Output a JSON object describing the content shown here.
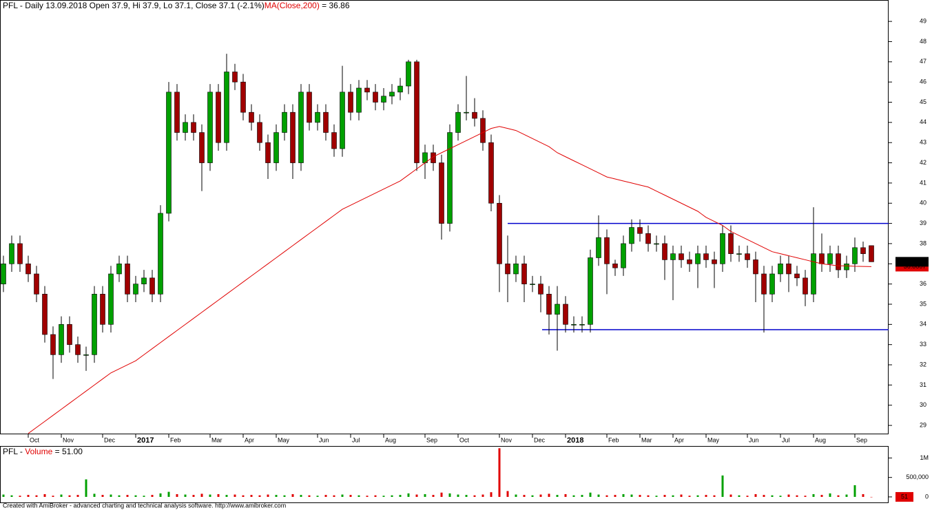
{
  "chart_data": [
    {
      "type": "candlestick",
      "title": "PFL - Daily 13.09.2018 Open 37.9, Hi 37.9, Lo 37.1, Close 37.1 (-2.1%)",
      "title_suffix": " = 36.86",
      "categories": [
        null,
        null,
        null,
        "Oct",
        null,
        null,
        null,
        "Nov",
        null,
        null,
        null,
        null,
        "Dec",
        null,
        null,
        null,
        "2017",
        null,
        null,
        null,
        "Feb",
        null,
        null,
        null,
        null,
        "Mar",
        null,
        null,
        null,
        "Apr",
        null,
        null,
        null,
        "May",
        null,
        null,
        null,
        null,
        "Jun",
        null,
        null,
        null,
        "Jul",
        null,
        null,
        null,
        "Aug",
        null,
        null,
        null,
        null,
        "Sep",
        null,
        null,
        null,
        "Oct",
        null,
        null,
        null,
        null,
        "Nov",
        null,
        null,
        null,
        "Dec",
        null,
        null,
        null,
        "2018",
        null,
        null,
        null,
        null,
        "Feb",
        null,
        null,
        null,
        "Mar",
        null,
        null,
        null,
        "Apr",
        null,
        null,
        null,
        "May",
        null,
        null,
        null,
        null,
        "Jun",
        null,
        null,
        null,
        "Jul",
        null,
        null,
        null,
        "Aug",
        null,
        null,
        null,
        null,
        "Sep",
        null,
        null
      ],
      "open": [
        36,
        37,
        38,
        37,
        36.5,
        35.5,
        33.5,
        32.5,
        34,
        33,
        32.5,
        32.5,
        35.5,
        34,
        36.5,
        37,
        35.5,
        36,
        36.3,
        35.5,
        39.5,
        45.5,
        43.5,
        44,
        43.5,
        42,
        45.5,
        43,
        46.5,
        46,
        44.5,
        44,
        43,
        42,
        43.5,
        44.5,
        42,
        45.5,
        44,
        44.5,
        43.5,
        42.7,
        45.5,
        44.5,
        45.7,
        45.5,
        45,
        45.3,
        45.5,
        45.8,
        47,
        42,
        42.5,
        42,
        39,
        43.5,
        44.5,
        44.5,
        44.2,
        43,
        40,
        37,
        36.5,
        37,
        36,
        36,
        35.5,
        34.5,
        35,
        34,
        34,
        34,
        37.3,
        38.3,
        37,
        36.8,
        38,
        38.8,
        38.5,
        38,
        38,
        37.2,
        37.5,
        37.2,
        37,
        37.5,
        37.2,
        37,
        38.5,
        37.5,
        37.5,
        37.2,
        36.5,
        35.5,
        36.5,
        37,
        36.5,
        36.3,
        35.5,
        37.5,
        37,
        37.5,
        36.7,
        37,
        37.8,
        37.9
      ],
      "high": [
        37.4,
        38.4,
        38.4,
        37.4,
        36.9,
        35.9,
        33.9,
        34.4,
        34.4,
        33.4,
        32.9,
        35.9,
        35.9,
        36.9,
        37.4,
        37.4,
        36.4,
        36.7,
        36.7,
        39.9,
        46,
        45.9,
        44.4,
        44.4,
        43.9,
        45.9,
        45.9,
        47.4,
        46.9,
        46.4,
        44.9,
        44.4,
        43.4,
        43.9,
        44.9,
        44.9,
        45.9,
        45.9,
        44.9,
        44.9,
        43.9,
        46.8,
        45.9,
        46.1,
        46.1,
        45.9,
        45.7,
        45.9,
        46.2,
        47.1,
        47.1,
        42.9,
        42.9,
        42.4,
        43.9,
        44.9,
        46.3,
        45.2,
        44.6,
        43.4,
        40.4,
        38.4,
        37.4,
        37.4,
        36.4,
        36.4,
        35.9,
        35.9,
        35.4,
        34.4,
        34.4,
        37.7,
        39.4,
        38.7,
        37.2,
        38.4,
        39.2,
        39.2,
        38.9,
        38.4,
        38.4,
        37.9,
        37.9,
        37.6,
        37.9,
        37.9,
        37.6,
        38.9,
        38.9,
        37.9,
        37.9,
        37.6,
        36.9,
        36.9,
        37.4,
        37.4,
        36.9,
        36.7,
        39.8,
        38.5,
        37.9,
        37.9,
        37.4,
        38.3,
        38.1,
        37.9
      ],
      "low": [
        35.6,
        36.6,
        36.6,
        36.1,
        35.1,
        33.1,
        31.3,
        32.1,
        32.6,
        32.1,
        31.7,
        32.1,
        33.6,
        33.6,
        36.1,
        35.1,
        35.1,
        35.6,
        35.1,
        35.1,
        39.1,
        43.1,
        43.1,
        43.1,
        40.6,
        41.6,
        42.6,
        42.6,
        45.6,
        44.1,
        43.6,
        42.6,
        41.2,
        41.6,
        43.1,
        41.2,
        41.6,
        43.6,
        43.6,
        43.1,
        42.3,
        42.3,
        44.1,
        44.1,
        45.1,
        44.6,
        44.6,
        44.9,
        45.1,
        45.4,
        41.6,
        41.2,
        41.6,
        38.2,
        38.6,
        43.1,
        44.1,
        43.8,
        42.6,
        39.6,
        35.6,
        35.1,
        36.1,
        35.1,
        35.6,
        34.6,
        33.5,
        32.7,
        33.6,
        33.6,
        33.6,
        33.6,
        36.9,
        35.5,
        36.4,
        36.4,
        37.6,
        38.1,
        37.6,
        37.6,
        36.2,
        35.2,
        36.8,
        36.6,
        35.8,
        36.8,
        35.8,
        36.6,
        37.1,
        37.1,
        36.8,
        35.1,
        33.6,
        35.1,
        36.1,
        35.6,
        35.9,
        34.9,
        35.1,
        36.6,
        36.6,
        36.3,
        36.3,
        36.6,
        37.1,
        37.1
      ],
      "close": [
        37,
        38,
        37,
        36.5,
        35.5,
        33.5,
        32.5,
        34,
        33,
        32.5,
        32.5,
        35.5,
        34,
        36.5,
        37,
        35.5,
        36,
        36.3,
        35.5,
        39.5,
        45.5,
        43.5,
        44,
        43.5,
        42,
        45.5,
        43,
        46.5,
        46,
        44.5,
        44,
        43,
        42,
        43.5,
        44.5,
        42,
        45.5,
        44,
        44.5,
        43.5,
        42.7,
        45.5,
        44.5,
        45.7,
        45.5,
        45,
        45.3,
        45.5,
        45.8,
        47,
        42,
        42.5,
        42,
        39,
        43.5,
        44.5,
        44.5,
        44.2,
        43,
        40,
        37,
        36.5,
        37,
        36,
        36,
        35.5,
        34.5,
        35,
        34,
        34,
        34,
        37.3,
        38.3,
        37,
        36.8,
        38,
        38.8,
        38.5,
        38,
        38,
        37.2,
        37.5,
        37.2,
        37,
        37.5,
        37.2,
        37,
        38.5,
        37.5,
        37.5,
        37.2,
        36.5,
        35.5,
        36.5,
        37,
        36.5,
        36.3,
        35.5,
        37.5,
        37,
        37.5,
        36.7,
        37,
        37.8,
        37.5,
        37.1
      ],
      "up_color": "#00a000",
      "down_color": "#a00000",
      "series": [
        {
          "name": "MA(Close,200)",
          "color": "#e00000",
          "values": [
            null,
            null,
            null,
            28.6,
            28.9,
            29.2,
            29.5,
            29.8,
            30.1,
            30.4,
            30.7,
            31,
            31.3,
            31.6,
            31.8,
            32,
            32.2,
            32.5,
            32.8,
            33.1,
            33.4,
            33.7,
            34,
            34.3,
            34.6,
            34.9,
            35.2,
            35.5,
            35.8,
            36.1,
            36.4,
            36.7,
            37,
            37.3,
            37.6,
            37.9,
            38.2,
            38.5,
            38.8,
            39.1,
            39.4,
            39.7,
            39.9,
            40.1,
            40.3,
            40.5,
            40.7,
            40.9,
            41.1,
            41.4,
            41.7,
            42,
            42.3,
            42.5,
            42.7,
            42.9,
            43.1,
            43.3,
            43.5,
            43.7,
            43.8,
            43.7,
            43.6,
            43.4,
            43.2,
            43,
            42.8,
            42.5,
            42.3,
            42.1,
            41.9,
            41.7,
            41.5,
            41.3,
            41.2,
            41.1,
            41,
            40.9,
            40.8,
            40.6,
            40.4,
            40.2,
            40,
            39.8,
            39.6,
            39.3,
            39.1,
            38.9,
            38.6,
            38.4,
            38.2,
            38,
            37.8,
            37.6,
            37.5,
            37.4,
            37.3,
            37.2,
            37.1,
            37,
            36.95,
            36.9,
            36.9,
            36.88,
            36.87,
            36.86
          ]
        }
      ],
      "hlines": [
        {
          "value": 39,
          "color": "#0000cc"
        },
        {
          "value": 33.74,
          "color": "#0000cc"
        }
      ],
      "last_close": 37.1,
      "ma_last": 36.8607,
      "ylim": [
        28.56,
        50.06
      ],
      "yticks": [
        29,
        30,
        31,
        32,
        33,
        34,
        35,
        36,
        37,
        38,
        39,
        40,
        41,
        42,
        43,
        44,
        45,
        46,
        47,
        48,
        49
      ]
    },
    {
      "type": "bar",
      "title": "PFL - ",
      "series_name": "Volume",
      "title_suffix": " = 51.00",
      "values": [
        60000,
        40000,
        30000,
        50000,
        40000,
        70000,
        30000,
        60000,
        40000,
        50000,
        450000,
        80000,
        50000,
        60000,
        40000,
        50000,
        40000,
        30000,
        50000,
        90000,
        130000,
        70000,
        60000,
        50000,
        80000,
        60000,
        70000,
        50000,
        60000,
        40000,
        50000,
        40000,
        60000,
        50000,
        40000,
        70000,
        50000,
        40000,
        30000,
        50000,
        40000,
        60000,
        50000,
        40000,
        30000,
        40000,
        30000,
        40000,
        50000,
        90000,
        60000,
        70000,
        50000,
        110000,
        90000,
        60000,
        50000,
        40000,
        60000,
        120000,
        1250000,
        150000,
        60000,
        50000,
        40000,
        60000,
        80000,
        50000,
        70000,
        40000,
        50000,
        110000,
        60000,
        40000,
        50000,
        70000,
        60000,
        50000,
        40000,
        30000,
        50000,
        40000,
        60000,
        30000,
        40000,
        50000,
        40000,
        550000,
        60000,
        40000,
        30000,
        70000,
        50000,
        40000,
        30000,
        60000,
        40000,
        30000,
        70000,
        50000,
        90000,
        40000,
        60000,
        300000,
        70000,
        51
      ],
      "last_value": 51,
      "ylim": [
        -160000,
        1290000
      ],
      "yticks": [
        0,
        {
          "value": 500000,
          "label": "500,000"
        },
        {
          "value": 1000000,
          "label": "1M"
        }
      ]
    }
  ],
  "footer": "Created with AmiBroker - advanced charting and technical analysis software. http://www.amibroker.com"
}
